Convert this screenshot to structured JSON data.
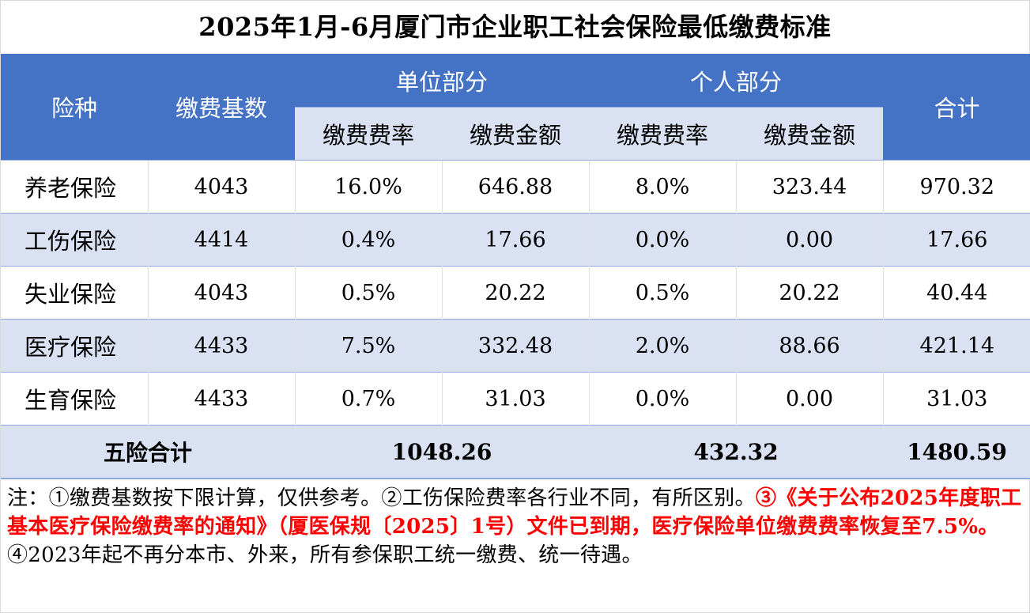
{
  "title": "2025年1月-6月厦门市企业职工社会保险最低缴费标准",
  "header": {
    "type": "险种",
    "base": "缴费基数",
    "unit_group": "单位部分",
    "personal_group": "个人部分",
    "total": "合计",
    "unit_rate": "缴费费率",
    "unit_amount": "缴费金额",
    "personal_rate": "缴费费率",
    "personal_amount": "缴费金额"
  },
  "rows": [
    {
      "name": "养老保险",
      "base": "4043",
      "unit_rate": "16.0%",
      "unit_amount": "646.88",
      "personal_rate": "8.0%",
      "personal_amount": "323.44",
      "total": "970.32"
    },
    {
      "name": "工伤保险",
      "base": "4414",
      "unit_rate": "0.4%",
      "unit_amount": "17.66",
      "personal_rate": "0.0%",
      "personal_amount": "0.00",
      "total": "17.66"
    },
    {
      "name": "失业保险",
      "base": "4043",
      "unit_rate": "0.5%",
      "unit_amount": "20.22",
      "personal_rate": "0.5%",
      "personal_amount": "20.22",
      "total": "40.44"
    },
    {
      "name": "医疗保险",
      "base": "4433",
      "unit_rate": "7.5%",
      "unit_amount": "332.48",
      "personal_rate": "2.0%",
      "personal_amount": "88.66",
      "total": "421.14"
    },
    {
      "name": "生育保险",
      "base": "4433",
      "unit_rate": "0.7%",
      "unit_amount": "31.03",
      "personal_rate": "0.0%",
      "personal_amount": "0.00",
      "total": "31.03"
    }
  ],
  "summary": {
    "label": "五险合计",
    "unit_total": "1048.26",
    "personal_total": "432.32",
    "grand_total": "1480.59"
  },
  "notes": {
    "part1": "注：①缴费基数按下限计算，仅供参考。②工伤保险费率各行业不同，有所区别。",
    "part2_red": "③《关于公布2025年度职工基本医疗保险缴费率的通知》（厦医保规〔2025〕1号）文件已到期，医疗保险单位缴费费率恢复至7.5%。",
    "part3": "④2023年起不再分本市、外来，所有参保职工统一缴费、统一待遇。"
  },
  "colors": {
    "header_blue": "#4472c4",
    "band_light": "#d9e1f2",
    "highlight_red": "#ff0000"
  }
}
